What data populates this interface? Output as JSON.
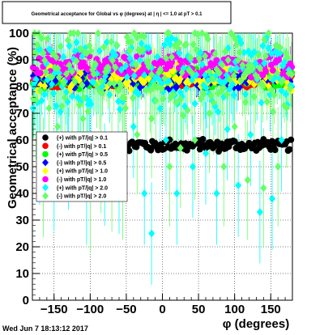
{
  "footer": {
    "timestamp": "Wed Jun  7 18:13:12 2017"
  },
  "chart_data": {
    "type": "scatter",
    "title": "Geometrical acceptance for Global vs φ (degrees) at | η | <= 1.0 at pT > 0.1",
    "xlabel": "φ (degrees)",
    "ylabel": "Geometrical acceptance (%)",
    "xlim": [
      -180,
      180
    ],
    "ylim": [
      0,
      100
    ],
    "x_ticks": [
      -150,
      -100,
      -50,
      0,
      50,
      100,
      150
    ],
    "x_tick_labels": [
      "−150",
      "−100",
      "−50",
      "0",
      "50",
      "100",
      "150"
    ],
    "y_ticks": [
      0,
      10,
      20,
      30,
      40,
      50,
      60,
      70,
      80,
      90,
      100
    ],
    "y_tick_labels": [
      "0",
      "10",
      "20",
      "30",
      "40",
      "50",
      "60",
      "70",
      "80",
      "90",
      "100"
    ],
    "grid": true,
    "legend_position": "left-middle",
    "series": [
      {
        "name": "(+) with pT/|q| > 0.1",
        "color": "#000000",
        "marker": "circle",
        "band": [
          56,
          60
        ],
        "spread": 1.0,
        "err": 0.8,
        "x_start": -160
      },
      {
        "name": "(-) with pT/|q| > 0.1",
        "color": "#ff0000",
        "marker": "circle",
        "band": [
          80,
          84
        ],
        "spread": 1.5,
        "err": 2
      },
      {
        "name": "(+) with pT/|q| > 0.5",
        "color": "#00ff00",
        "marker": "circle",
        "band": [
          80,
          86
        ],
        "spread": 3,
        "err": 5
      },
      {
        "name": "(-) with pT/|q| > 0.5",
        "color": "#0000ff",
        "marker": "diamond",
        "band": [
          80,
          85
        ],
        "spread": 3,
        "err": 4
      },
      {
        "name": "(+) with pT/|q| > 1.0",
        "color": "#ffff00",
        "marker": "diamond",
        "band": [
          80,
          88
        ],
        "spread": 4,
        "err": 6
      },
      {
        "name": "(-) with pT/|q| > 1.0",
        "color": "#ff00ff",
        "marker": "circle",
        "band": [
          84,
          92
        ],
        "spread": 4,
        "err": 5
      },
      {
        "name": "(+) with pT/|q| > 2.0",
        "color": "#00ffff",
        "marker": "diamond",
        "band": [
          72,
          96
        ],
        "spread": 8,
        "err": 12,
        "low_points": [
          [
            -178,
            80
          ],
          [
            -170,
            55
          ],
          [
            -150,
            45
          ],
          [
            -130,
            53
          ],
          [
            -105,
            40
          ],
          [
            -80,
            47
          ],
          [
            -60,
            44
          ],
          [
            -40,
            65
          ],
          [
            -25,
            40
          ],
          [
            -15,
            25
          ],
          [
            5,
            60
          ],
          [
            20,
            40
          ],
          [
            42,
            50
          ],
          [
            60,
            55
          ],
          [
            75,
            40
          ],
          [
            90,
            64
          ],
          [
            105,
            43
          ],
          [
            122,
            62
          ],
          [
            135,
            33
          ],
          [
            152,
            38
          ],
          [
            165,
            60
          ]
        ]
      },
      {
        "name": "(-) with pT/|q| > 2.0",
        "color": "#66ff66",
        "marker": "diamond",
        "band": [
          72,
          100
        ],
        "spread": 9,
        "err": 14,
        "low_points": [
          [
            -175,
            75
          ],
          [
            -165,
            46
          ],
          [
            -145,
            65
          ],
          [
            -125,
            60
          ],
          [
            -110,
            68
          ],
          [
            -100,
            40
          ],
          [
            -85,
            55
          ],
          [
            -70,
            48
          ],
          [
            -55,
            45
          ],
          [
            -35,
            62
          ],
          [
            -15,
            68
          ],
          [
            10,
            50
          ],
          [
            25,
            57
          ],
          [
            45,
            60
          ],
          [
            65,
            70
          ],
          [
            85,
            50
          ],
          [
            100,
            65
          ],
          [
            118,
            45
          ],
          [
            140,
            42
          ],
          [
            160,
            50
          ],
          [
            172,
            72
          ]
        ]
      }
    ]
  }
}
